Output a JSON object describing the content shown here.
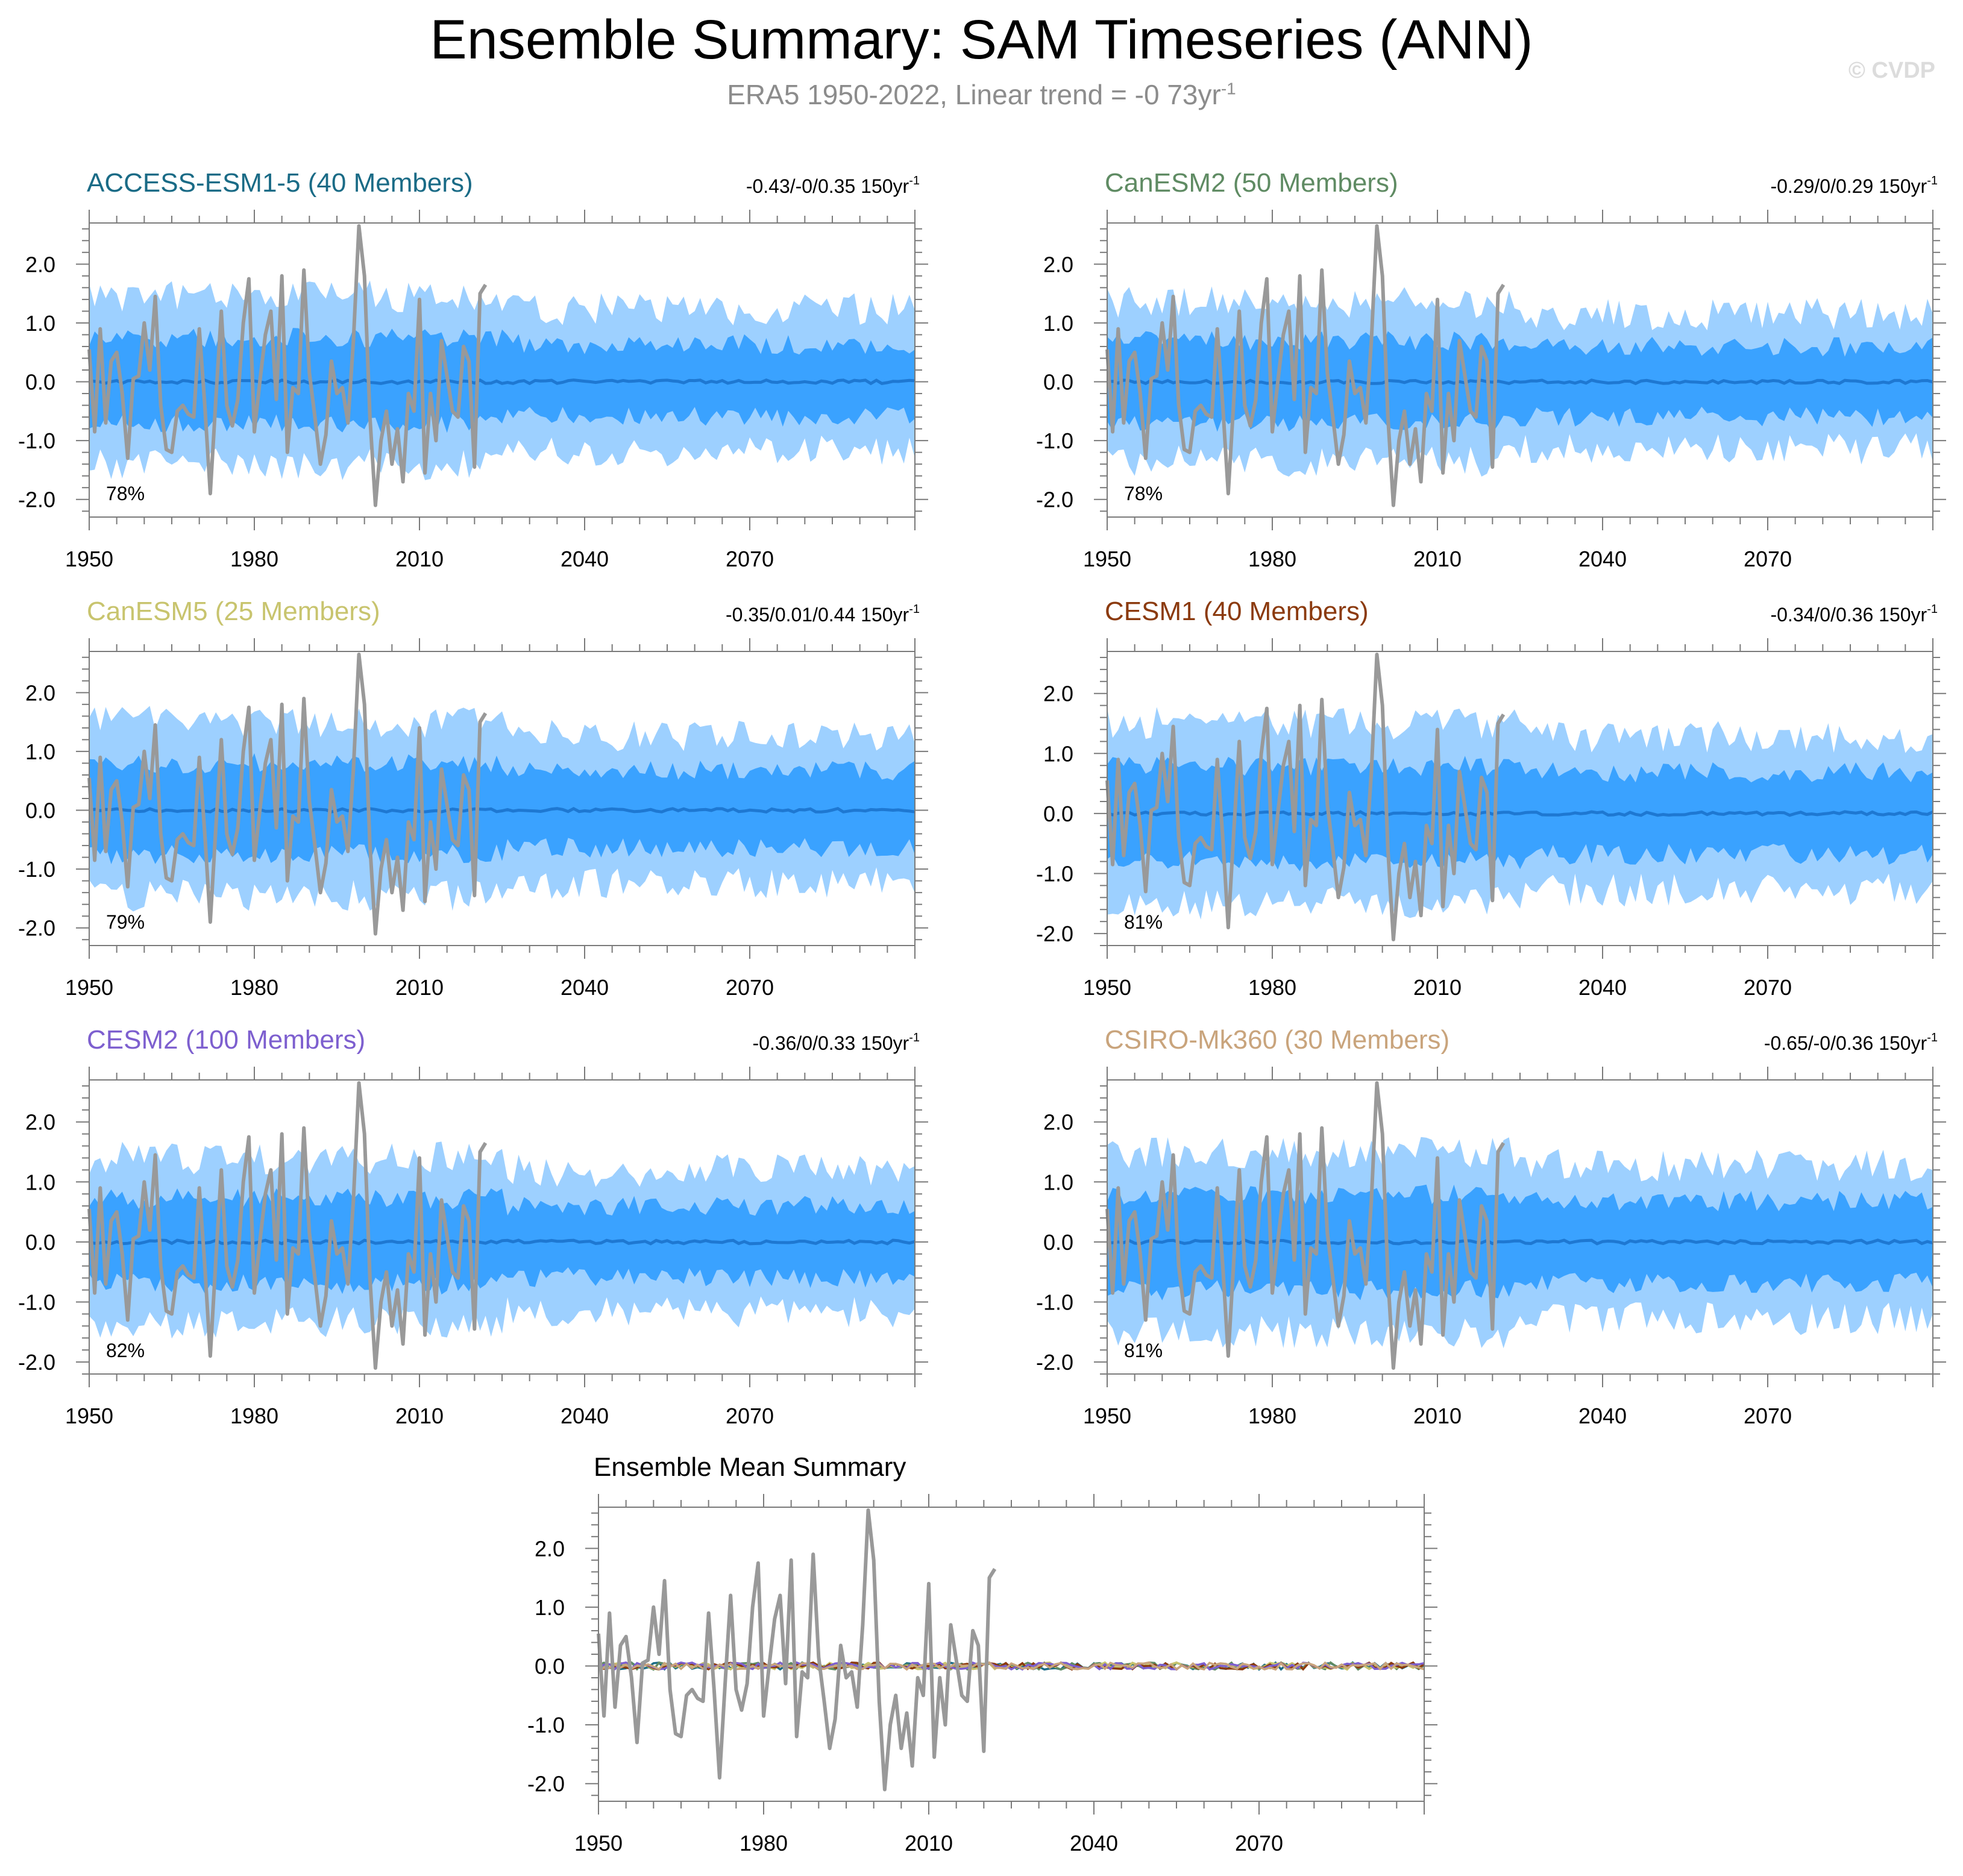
{
  "page": {
    "title": "Ensemble Summary: SAM Timeseries (ANN)",
    "subtitle_prefix": "ERA5 1950-2022, Linear trend = -0 73yr",
    "subtitle_exp": "-1",
    "watermark": "© CVDP"
  },
  "colors": {
    "outer_band": "#9dd0ff",
    "inner_band": "#3aa2ff",
    "ensemble_mean": "#1e78d2",
    "obs": "#999999",
    "axis": "#7a7a7a"
  },
  "chart_data": [
    {
      "type": "line",
      "title": "ACCESS-ESM1-5 (40 Members)",
      "title_color": "#1a6b86",
      "trend_label": "-0.43/-0/0.35 150yr",
      "trend_exp": "-1",
      "percent_label": "78%",
      "x_range": [
        1950,
        2100
      ],
      "ylim": [
        -2.3,
        2.7
      ],
      "y_ticks": [
        -2.0,
        -1.0,
        0.0,
        1.0,
        2.0
      ],
      "y_tick_labels": [
        "-2.0",
        "-1.0",
        "0.0",
        "1.0",
        "2.0"
      ],
      "x_ticks": [
        1950,
        1980,
        2010,
        2040,
        2070
      ],
      "x_tick_labels": [
        "1950",
        "1980",
        "2010",
        "2040",
        "2070"
      ],
      "outer_band": [
        -1.4,
        1.45
      ],
      "inner_band": [
        -0.7,
        0.75
      ],
      "seed": 11
    },
    {
      "type": "line",
      "title": "CanESM2 (50 Members)",
      "title_color": "#5f8b63",
      "trend_label": "-0.29/0/0.29 150yr",
      "trend_exp": "-1",
      "percent_label": "78%",
      "x_range": [
        1950,
        2100
      ],
      "ylim": [
        -2.3,
        2.7
      ],
      "y_ticks": [
        -2.0,
        -1.0,
        0.0,
        1.0,
        2.0
      ],
      "y_tick_labels": [
        "-2.0",
        "-1.0",
        "0.0",
        "1.0",
        "2.0"
      ],
      "x_ticks": [
        1950,
        1980,
        2010,
        2040,
        2070
      ],
      "x_tick_labels": [
        "1950",
        "1980",
        "2010",
        "2040",
        "2070"
      ],
      "outer_band": [
        -1.35,
        1.35
      ],
      "inner_band": [
        -0.7,
        0.7
      ],
      "seed": 23
    },
    {
      "type": "line",
      "title": "CanESM5 (25 Members)",
      "title_color": "#c8c46e",
      "trend_label": "-0.35/0.01/0.44 150yr",
      "trend_exp": "-1",
      "percent_label": "79%",
      "x_range": [
        1950,
        2100
      ],
      "ylim": [
        -2.3,
        2.7
      ],
      "y_ticks": [
        -2.0,
        -1.0,
        0.0,
        1.0,
        2.0
      ],
      "y_tick_labels": [
        "-2.0",
        "-1.0",
        "0.0",
        "1.0",
        "2.0"
      ],
      "x_ticks": [
        1950,
        1980,
        2010,
        2040,
        2070
      ],
      "x_tick_labels": [
        "1950",
        "1980",
        "2010",
        "2040",
        "2070"
      ],
      "outer_band": [
        -1.45,
        1.5
      ],
      "inner_band": [
        -0.75,
        0.8
      ],
      "seed": 37
    },
    {
      "type": "line",
      "title": "CESM1 (40 Members)",
      "title_color": "#8b3a0e",
      "trend_label": "-0.34/0/0.36 150yr",
      "trend_exp": "-1",
      "percent_label": "81%",
      "x_range": [
        1950,
        2100
      ],
      "ylim": [
        -2.2,
        2.7
      ],
      "y_ticks": [
        -2.0,
        -1.0,
        0.0,
        1.0,
        2.0
      ],
      "y_tick_labels": [
        "-2.0",
        "-1.0",
        "0.0",
        "1.0",
        "2.0"
      ],
      "x_ticks": [
        1950,
        1980,
        2010,
        2040,
        2070
      ],
      "x_tick_labels": [
        "1950",
        "1980",
        "2010",
        "2040",
        "2070"
      ],
      "outer_band": [
        -1.5,
        1.5
      ],
      "inner_band": [
        -0.8,
        0.8
      ],
      "seed": 41
    },
    {
      "type": "line",
      "title": "CESM2 (100 Members)",
      "title_color": "#7d5fcf",
      "trend_label": "-0.36/0/0.33 150yr",
      "trend_exp": "-1",
      "percent_label": "82%",
      "x_range": [
        1950,
        2100
      ],
      "ylim": [
        -2.2,
        2.7
      ],
      "y_ticks": [
        -2.0,
        -1.0,
        0.0,
        1.0,
        2.0
      ],
      "y_tick_labels": [
        "-2.0",
        "-1.0",
        "0.0",
        "1.0",
        "2.0"
      ],
      "x_ticks": [
        1950,
        1980,
        2010,
        2040,
        2070
      ],
      "x_tick_labels": [
        "1950",
        "1980",
        "2010",
        "2040",
        "2070"
      ],
      "outer_band": [
        -1.35,
        1.4
      ],
      "inner_band": [
        -0.7,
        0.72
      ],
      "seed": 53
    },
    {
      "type": "line",
      "title": "CSIRO-Mk360 (30 Members)",
      "title_color": "#c9a47c",
      "trend_label": "-0.65/-0/0.36 150yr",
      "trend_exp": "-1",
      "percent_label": "81%",
      "x_range": [
        1950,
        2100
      ],
      "ylim": [
        -2.2,
        2.7
      ],
      "y_ticks": [
        -2.0,
        -1.0,
        0.0,
        1.0,
        2.0
      ],
      "y_tick_labels": [
        "-2.0",
        "-1.0",
        "0.0",
        "1.0",
        "2.0"
      ],
      "x_ticks": [
        1950,
        1980,
        2010,
        2040,
        2070
      ],
      "x_tick_labels": [
        "1950",
        "1980",
        "2010",
        "2040",
        "2070"
      ],
      "outer_band": [
        -1.5,
        1.5
      ],
      "inner_band": [
        -0.8,
        0.8
      ],
      "seed": 67
    },
    {
      "type": "line",
      "title": "Ensemble Mean Summary",
      "title_color": "#000000",
      "trend_label": "",
      "trend_exp": "",
      "percent_label": "",
      "x_range": [
        1950,
        2100
      ],
      "ylim": [
        -2.3,
        2.7
      ],
      "y_ticks": [
        -2.0,
        -1.0,
        0.0,
        1.0,
        2.0
      ],
      "y_tick_labels": [
        "-2.0",
        "-1.0",
        "0.0",
        "1.0",
        "2.0"
      ],
      "x_ticks": [
        1950,
        1980,
        2010,
        2040,
        2070
      ],
      "x_tick_labels": [
        "1950",
        "1980",
        "2010",
        "2040",
        "2070"
      ],
      "outer_band": null,
      "inner_band": null,
      "seed": 79,
      "mean_lines": true
    }
  ],
  "obs_series": {
    "name": "ERA5",
    "x_start": 1950,
    "values": [
      0.55,
      -0.85,
      0.9,
      -0.7,
      0.35,
      0.5,
      -0.2,
      -1.3,
      0.05,
      0.1,
      1.0,
      0.2,
      1.45,
      -0.4,
      -1.15,
      -1.2,
      -0.5,
      -0.4,
      -0.55,
      -0.6,
      0.9,
      -0.4,
      -1.9,
      -0.3,
      1.2,
      -0.4,
      -0.75,
      -0.3,
      1.0,
      1.75,
      -0.85,
      0.0,
      0.8,
      1.2,
      -0.3,
      1.8,
      -1.2,
      -0.1,
      -0.2,
      1.9,
      0.15,
      -0.6,
      -1.4,
      -0.9,
      0.35,
      -0.2,
      -0.1,
      -0.7,
      0.7,
      2.65,
      1.8,
      -0.6,
      -2.1,
      -1.0,
      -0.5,
      -1.4,
      -0.8,
      -1.7,
      -0.2,
      -0.5,
      1.4,
      -1.55,
      -0.2,
      -1.0,
      0.7,
      0.1,
      -0.5,
      -0.6,
      0.6,
      0.35,
      -1.45,
      1.5,
      1.65
    ]
  }
}
